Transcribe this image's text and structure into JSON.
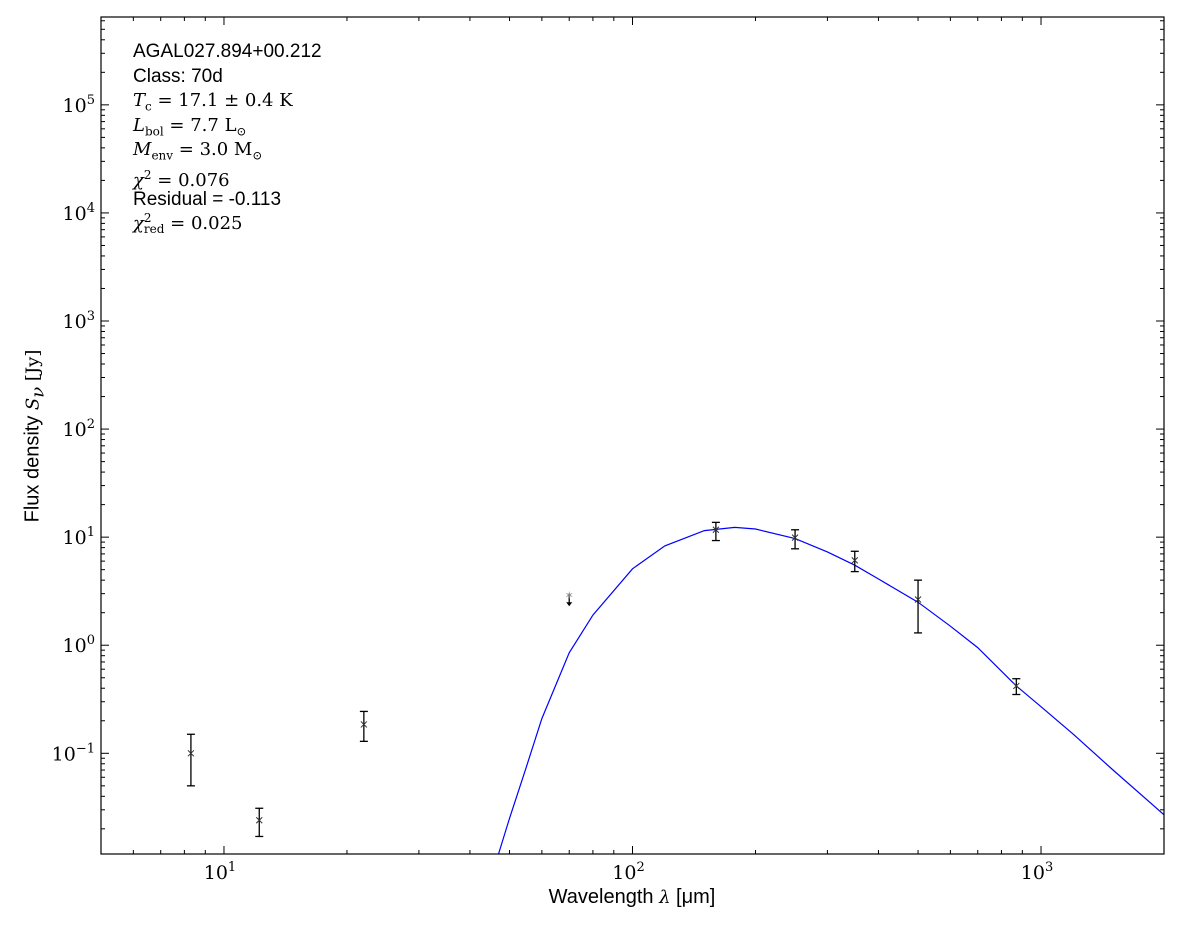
{
  "chart_data": {
    "type": "scatter",
    "xscale": "log",
    "yscale": "log",
    "xlim": [
      5,
      2000
    ],
    "ylim": [
      0.0117,
      650000
    ],
    "xlabel": {
      "text": "Wavelength ",
      "symbol": "λ",
      "unit": " [μm]"
    },
    "ylabel": {
      "text": "Flux density ",
      "symbol": "S",
      "sub": "ν",
      "unit": " [Jy]"
    },
    "xticks": [
      {
        "base": "10",
        "exp": "1",
        "value": 10
      },
      {
        "base": "10",
        "exp": "2",
        "value": 100
      },
      {
        "base": "10",
        "exp": "3",
        "value": 1000
      }
    ],
    "yticks": [
      {
        "base": "10",
        "exp": "−1",
        "value": 0.1
      },
      {
        "base": "10",
        "exp": "0",
        "value": 1
      },
      {
        "base": "10",
        "exp": "1",
        "value": 10
      },
      {
        "base": "10",
        "exp": "2",
        "value": 100
      },
      {
        "base": "10",
        "exp": "3",
        "value": 1000
      },
      {
        "base": "10",
        "exp": "4",
        "value": 10000
      },
      {
        "base": "10",
        "exp": "5",
        "value": 100000
      }
    ],
    "grid": false,
    "points": [
      {
        "x": 8.3,
        "y": 0.1,
        "yhi": 0.15,
        "ylo": 0.05
      },
      {
        "x": 12.2,
        "y": 0.024,
        "yhi": 0.031,
        "ylo": 0.017
      },
      {
        "x": 22,
        "y": 0.185,
        "yhi": 0.244,
        "ylo": 0.129
      },
      {
        "x": 160,
        "y": 11.7,
        "yhi": 13.7,
        "ylo": 9.3
      },
      {
        "x": 250,
        "y": 9.9,
        "yhi": 11.7,
        "ylo": 7.8
      },
      {
        "x": 350,
        "y": 6.1,
        "yhi": 7.4,
        "ylo": 4.8
      },
      {
        "x": 500,
        "y": 2.65,
        "yhi": 4.0,
        "ylo": 1.3
      },
      {
        "x": 870,
        "y": 0.42,
        "yhi": 0.49,
        "ylo": 0.35
      }
    ],
    "upper_limits": [
      {
        "x": 70,
        "y": 2.9
      }
    ],
    "model_curve": {
      "color": "#0000ff",
      "x": [
        45,
        47,
        50,
        55,
        60,
        70,
        80,
        100,
        120,
        150,
        178,
        200,
        250,
        300,
        350,
        400,
        500,
        600,
        700,
        870,
        1000,
        1200,
        1500,
        2000
      ],
      "y": [
        0.008,
        0.0117,
        0.025,
        0.075,
        0.21,
        0.85,
        1.9,
        5.1,
        8.3,
        11.5,
        12.3,
        11.9,
        9.7,
        7.3,
        5.5,
        4.1,
        2.5,
        1.5,
        0.95,
        0.42,
        0.27,
        0.15,
        0.07,
        0.027
      ]
    },
    "annotations": {
      "source": "AGAL027.894+00.212",
      "class": "Class: 70d",
      "tc": {
        "sym": "T",
        "sub": "c",
        "rest": " = 17.1 ± 0.4 K"
      },
      "lbol": {
        "sym": "L",
        "sub": "bol",
        "rest": " = 7.7 L",
        "rest_sub": "⊙"
      },
      "menv": {
        "sym": "M",
        "sub": "env",
        "rest": " = 3.0 M",
        "rest_sub": "⊙"
      },
      "chi2": {
        "sym": "χ",
        "sup": "2",
        "rest": " = 0.076"
      },
      "residual": "Residual = -0.113",
      "chi2red": {
        "sym": "χ",
        "sup": "2",
        "sub": "red",
        "rest": " = 0.025"
      }
    }
  }
}
